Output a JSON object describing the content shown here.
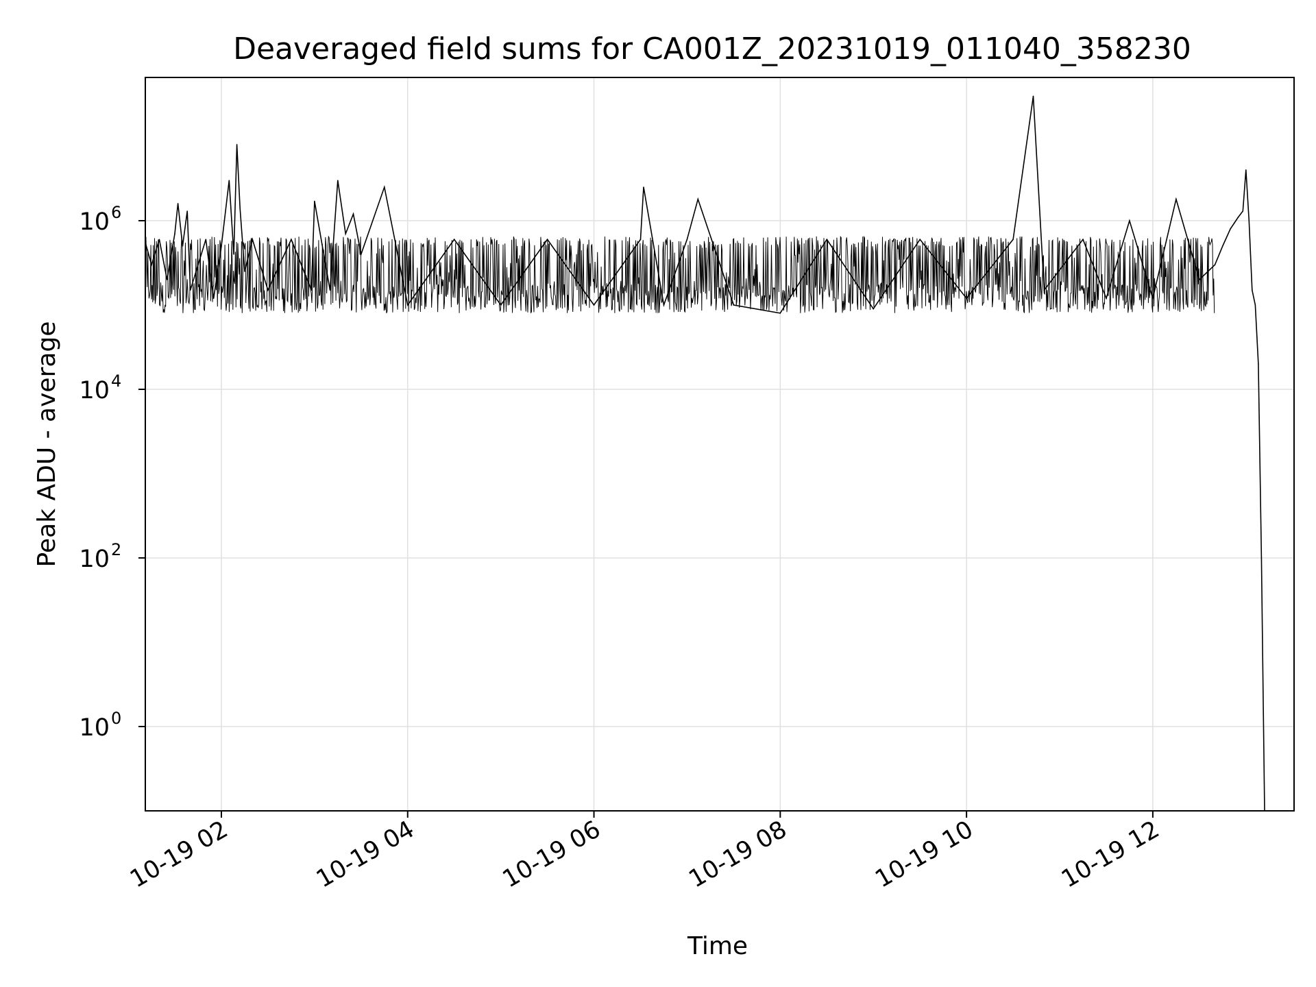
{
  "chart_data": {
    "type": "line",
    "title": "Deaveraged field sums for CA001Z_20231019_011040_358230",
    "xlabel": "Time",
    "ylabel": "Peak ADU - average",
    "yscale": "log",
    "ylim": [
      0.1,
      50000000
    ],
    "xlim": [
      "10-19 01:11",
      "10-19 13:31"
    ],
    "grid": true,
    "line_color": "#000000",
    "grid_color": "#e0e0e0",
    "x_ticks": [
      {
        "value": "10-19 02:00",
        "label": "10-19 02"
      },
      {
        "value": "10-19 04:00",
        "label": "10-19 04"
      },
      {
        "value": "10-19 06:00",
        "label": "10-19 06"
      },
      {
        "value": "10-19 08:00",
        "label": "10-19 08"
      },
      {
        "value": "10-19 10:00",
        "label": "10-19 10"
      },
      {
        "value": "10-19 12:00",
        "label": "10-19 12"
      }
    ],
    "y_ticks": [
      {
        "value": 1,
        "base": "10",
        "exp": "0"
      },
      {
        "value": 100,
        "base": "10",
        "exp": "2"
      },
      {
        "value": 10000,
        "base": "10",
        "exp": "4"
      },
      {
        "value": 1000000,
        "base": "10",
        "exp": "6"
      }
    ],
    "baseline": {
      "start": "10-19 01:11",
      "end": "10-19 12:40",
      "low": 80000,
      "high": 650000
    },
    "x": [
      "10-19 01:11",
      "10-19 01:15",
      "10-19 01:20",
      "10-19 01:25",
      "10-19 01:30",
      "10-19 01:32",
      "10-19 01:35",
      "10-19 01:38",
      "10-19 01:40",
      "10-19 01:45",
      "10-19 01:50",
      "10-19 01:55",
      "10-19 02:00",
      "10-19 02:05",
      "10-19 02:08",
      "10-19 02:10",
      "10-19 02:12",
      "10-19 02:15",
      "10-19 02:20",
      "10-19 02:30",
      "10-19 02:45",
      "10-19 02:58",
      "10-19 03:00",
      "10-19 03:10",
      "10-19 03:15",
      "10-19 03:20",
      "10-19 03:25",
      "10-19 03:30",
      "10-19 03:45",
      "10-19 04:00",
      "10-19 04:30",
      "10-19 05:00",
      "10-19 05:30",
      "10-19 06:00",
      "10-19 06:30",
      "10-19 06:32",
      "10-19 06:45",
      "10-19 07:00",
      "10-19 07:07",
      "10-19 07:30",
      "10-19 08:00",
      "10-19 08:30",
      "10-19 09:00",
      "10-19 09:30",
      "10-19 10:00",
      "10-19 10:30",
      "10-19 10:43",
      "10-19 10:50",
      "10-19 11:15",
      "10-19 11:30",
      "10-19 11:45",
      "10-19 12:00",
      "10-19 12:15",
      "10-19 12:30",
      "10-19 12:40",
      "10-19 12:45",
      "10-19 12:50",
      "10-19 12:55",
      "10-19 12:58",
      "10-19 13:00",
      "10-19 13:02",
      "10-19 13:04",
      "10-19 13:06",
      "10-19 13:08",
      "10-19 13:10",
      "10-19 13:12"
    ],
    "y": [
      550000,
      300000,
      600000,
      200000,
      700000,
      1600000,
      500000,
      1300000,
      150000,
      300000,
      600000,
      120000,
      500000,
      3000000,
      400000,
      8000000,
      1400000,
      250000,
      600000,
      150000,
      600000,
      150000,
      1700000,
      150000,
      3000000,
      700000,
      1200000,
      400000,
      2500000,
      100000,
      600000,
      100000,
      600000,
      100000,
      600000,
      2500000,
      100000,
      600000,
      1800000,
      100000,
      80000,
      600000,
      90000,
      600000,
      120000,
      600000,
      30000000,
      150000,
      600000,
      120000,
      1000000,
      120000,
      1800000,
      200000,
      300000,
      500000,
      800000,
      1100000,
      1300000,
      4000000,
      1000000,
      150000,
      100000,
      20000,
      100,
      0.1
    ]
  }
}
